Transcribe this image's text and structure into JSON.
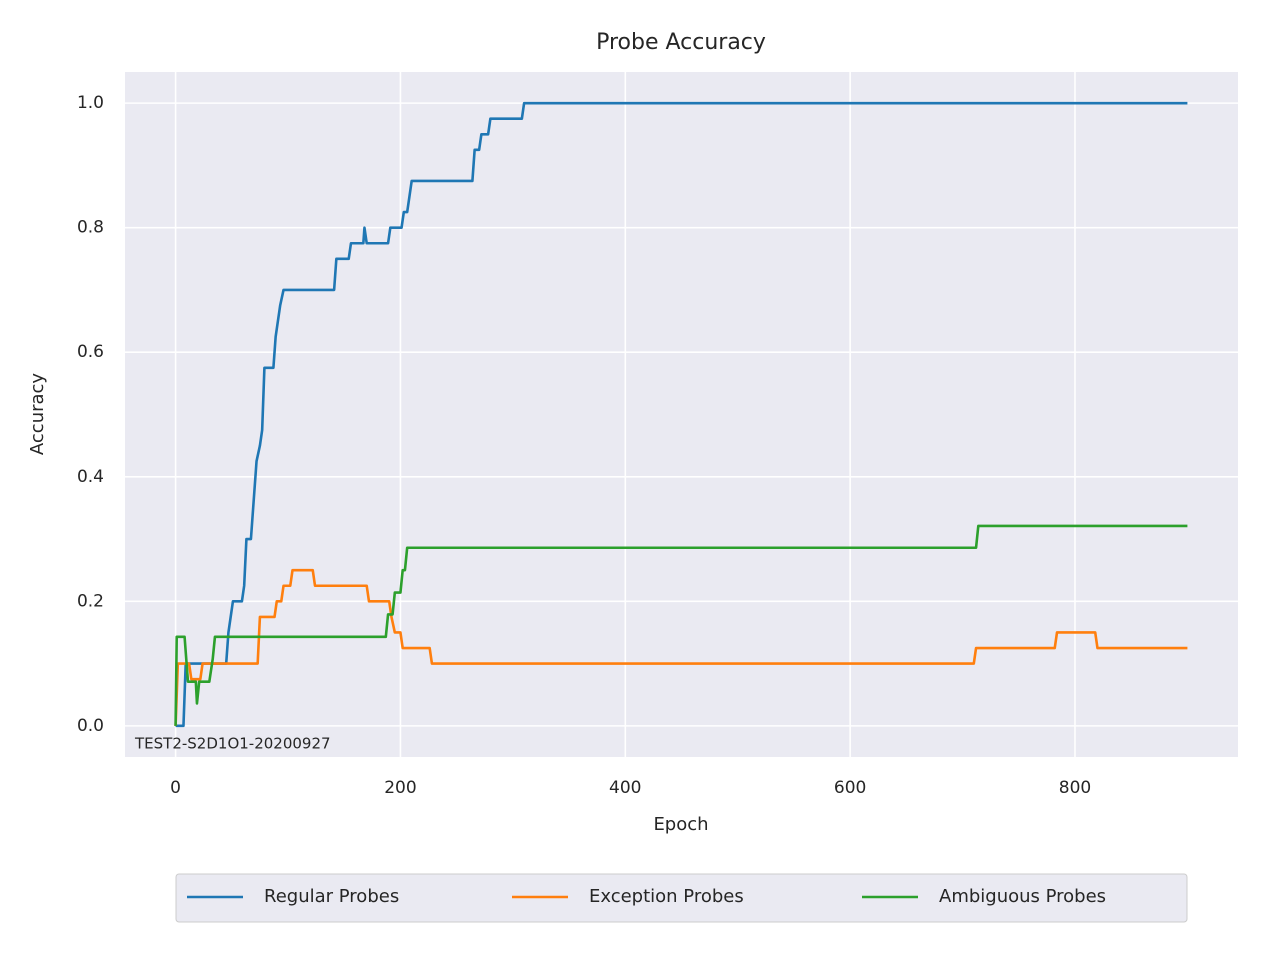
{
  "chart_data": {
    "type": "line",
    "title": "Probe Accuracy",
    "x_label": "Epoch",
    "y_label": "Accuracy",
    "annotation": "TEST2-S2D1O1-20200927",
    "xlim": [
      -45,
      945
    ],
    "ylim": [
      -0.05,
      1.05
    ],
    "xticks": [
      0,
      200,
      400,
      600,
      800
    ],
    "yticks": [
      {
        "value": 0,
        "label": "0.0"
      },
      0.2,
      0.4,
      0.6,
      0.8,
      {
        "value": 1,
        "label": "1.0"
      }
    ],
    "grid": true,
    "legend": "lower center",
    "series": [
      {
        "name": "Regular Probes",
        "color": "#1f77b4",
        "x": [
          0,
          7,
          9,
          45,
          47,
          51,
          59,
          61,
          63,
          67,
          69,
          72,
          75,
          77,
          79,
          87,
          89,
          93,
          96,
          141,
          143,
          154,
          156,
          167,
          168,
          170,
          189,
          191,
          201,
          203,
          206,
          208,
          210,
          264,
          266,
          270,
          272,
          278,
          280,
          308,
          310,
          900
        ],
        "values": [
          0,
          0,
          0.1,
          0.1,
          0.15,
          0.2,
          0.2,
          0.225,
          0.3,
          0.3,
          0.35,
          0.425,
          0.45,
          0.475,
          0.575,
          0.575,
          0.625,
          0.675,
          0.7,
          0.7,
          0.75,
          0.75,
          0.775,
          0.775,
          0.8,
          0.775,
          0.775,
          0.8,
          0.8,
          0.825,
          0.825,
          0.85,
          0.875,
          0.875,
          0.925,
          0.925,
          0.95,
          0.95,
          0.975,
          0.975,
          1.0,
          1.0
        ]
      },
      {
        "name": "Exception Probes",
        "color": "#ff7f0e",
        "x": [
          0,
          2,
          12,
          14,
          22,
          24,
          73,
          75,
          88,
          90,
          94,
          96,
          102,
          104,
          122,
          124,
          170,
          172,
          190,
          192,
          195,
          200,
          202,
          226,
          228,
          710,
          712,
          782,
          784,
          818,
          820,
          900
        ],
        "values": [
          0,
          0.1,
          0.1,
          0.075,
          0.075,
          0.1,
          0.1,
          0.175,
          0.175,
          0.2,
          0.2,
          0.225,
          0.225,
          0.25,
          0.25,
          0.225,
          0.225,
          0.2,
          0.2,
          0.175,
          0.15,
          0.15,
          0.125,
          0.125,
          0.1,
          0.1,
          0.125,
          0.125,
          0.15,
          0.15,
          0.125,
          0.125
        ]
      },
      {
        "name": "Ambiguous Probes",
        "color": "#2ca02c",
        "x": [
          0,
          1,
          8,
          11,
          18,
          19,
          21,
          30,
          33,
          35,
          187,
          189,
          193,
          195,
          200,
          202,
          204,
          206,
          712,
          714,
          900
        ],
        "values": [
          0,
          0.143,
          0.143,
          0.071,
          0.071,
          0.036,
          0.071,
          0.071,
          0.107,
          0.143,
          0.143,
          0.179,
          0.179,
          0.214,
          0.214,
          0.25,
          0.25,
          0.286,
          0.286,
          0.321,
          0.321
        ]
      }
    ]
  }
}
